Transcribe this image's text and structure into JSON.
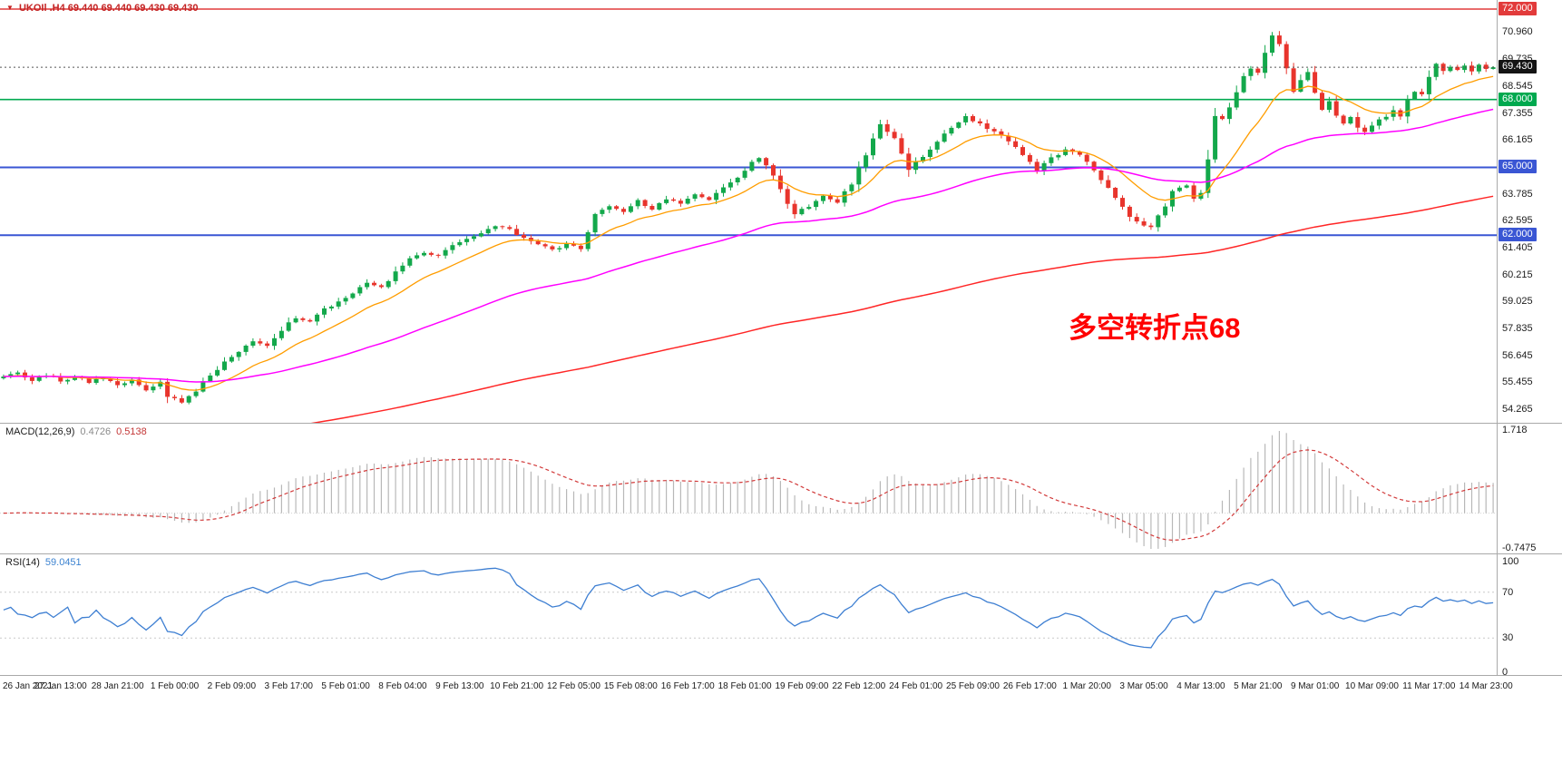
{
  "main_chart": {
    "title": {
      "symbol": "UKOIl .H4",
      "ohlc": "69.440 69.440 69.430 69.430"
    },
    "annotation": {
      "text": "多空转折点68",
      "color": "#ff0000"
    },
    "colors": {
      "up": "#13a84b",
      "down": "#e8342c"
    },
    "y_axis_ticks": [
      {
        "value": 70.96,
        "label": "70.960"
      },
      {
        "value": 69.735,
        "label": "69.735"
      },
      {
        "value": 68.545,
        "label": "68.545"
      },
      {
        "value": 67.355,
        "label": "67.355"
      },
      {
        "value": 66.165,
        "label": "66.165"
      },
      {
        "value": 63.785,
        "label": "63.785"
      },
      {
        "value": 62.595,
        "label": "62.595"
      },
      {
        "value": 61.405,
        "label": "61.405"
      },
      {
        "value": 60.215,
        "label": "60.215"
      },
      {
        "value": 59.025,
        "label": "59.025"
      },
      {
        "value": 57.835,
        "label": "57.835"
      },
      {
        "value": 56.645,
        "label": "56.645"
      },
      {
        "value": 55.455,
        "label": "55.455"
      },
      {
        "value": 54.265,
        "label": "54.265"
      }
    ],
    "levels": [
      {
        "value": 72.0,
        "label": "72.000",
        "color": "#e23b3b",
        "width": 1.6
      },
      {
        "value": 68.0,
        "label": "68.000",
        "color": "#00a94f",
        "width": 1.6
      },
      {
        "value": 65.0,
        "label": "65.000",
        "color": "#3a56d4",
        "width": 2
      },
      {
        "value": 62.0,
        "label": "62.000",
        "color": "#3a56d4",
        "width": 2
      }
    ],
    "current_price": {
      "value": 69.43,
      "label": "69.430",
      "badge_bg": "#141414",
      "line_color": "#555555"
    }
  },
  "macd_panel": {
    "name": "MACD(12,26,9)",
    "value1": "0.4726",
    "value2": "0.5138",
    "axis": [
      {
        "value": 1.718,
        "label": "1.718"
      },
      {
        "value": -0.7475,
        "label": "-0.7475"
      }
    ]
  },
  "rsi_panel": {
    "name": "RSI(14)",
    "value": "59.0451",
    "axis": [
      {
        "value": 100,
        "label": "100"
      },
      {
        "value": 70,
        "label": "70"
      },
      {
        "value": 30,
        "label": "30"
      },
      {
        "value": 0,
        "label": "0"
      }
    ]
  },
  "time_axis": {
    "labels": [
      "26 Jan 2021",
      "27 Jan 13:00",
      "28 Jan 21:00",
      "1 Feb 00:00",
      "2 Feb 09:00",
      "3 Feb 17:00",
      "5 Feb 01:00",
      "8 Feb 04:00",
      "9 Feb 13:00",
      "10 Feb 21:00",
      "12 Feb 05:00",
      "15 Feb 08:00",
      "16 Feb 17:00",
      "18 Feb 01:00",
      "19 Feb 09:00",
      "22 Feb 12:00",
      "24 Feb 01:00",
      "25 Feb 09:00",
      "26 Feb 17:00",
      "1 Mar 20:00",
      "3 Mar 05:00",
      "4 Mar 13:00",
      "5 Mar 21:00",
      "9 Mar 01:00",
      "10 Mar 09:00",
      "11 Mar 17:00",
      "14 Mar 23:00"
    ]
  },
  "chart_data": {
    "type": "candlestick",
    "symbol": "UKOIl",
    "timeframe": "H4",
    "n_candles": 210,
    "tick_every_candles": 8,
    "price_axis_range": [
      54.265,
      72.0
    ],
    "close_waypoints": [
      [
        0,
        55.75
      ],
      [
        2,
        55.95
      ],
      [
        4,
        55.6
      ],
      [
        6,
        55.85
      ],
      [
        8,
        55.55
      ],
      [
        10,
        55.75
      ],
      [
        12,
        55.45
      ],
      [
        14,
        55.7
      ],
      [
        16,
        55.35
      ],
      [
        18,
        55.6
      ],
      [
        20,
        55.2
      ],
      [
        22,
        55.45
      ],
      [
        23,
        54.9
      ],
      [
        25,
        54.55
      ],
      [
        27,
        55.15
      ],
      [
        29,
        55.85
      ],
      [
        31,
        56.35
      ],
      [
        33,
        56.85
      ],
      [
        35,
        57.35
      ],
      [
        37,
        57.15
      ],
      [
        39,
        57.8
      ],
      [
        41,
        58.35
      ],
      [
        43,
        58.15
      ],
      [
        45,
        58.7
      ],
      [
        47,
        59.1
      ],
      [
        49,
        59.45
      ],
      [
        51,
        59.9
      ],
      [
        53,
        59.7
      ],
      [
        55,
        60.35
      ],
      [
        57,
        60.95
      ],
      [
        59,
        61.25
      ],
      [
        61,
        61.05
      ],
      [
        63,
        61.5
      ],
      [
        65,
        61.85
      ],
      [
        67,
        62.15
      ],
      [
        69,
        62.45
      ],
      [
        71,
        62.25
      ],
      [
        73,
        61.85
      ],
      [
        75,
        61.55
      ],
      [
        77,
        61.35
      ],
      [
        79,
        61.6
      ],
      [
        81,
        61.45
      ],
      [
        82,
        62.1
      ],
      [
        83,
        63.0
      ],
      [
        85,
        63.35
      ],
      [
        87,
        63.05
      ],
      [
        89,
        63.5
      ],
      [
        91,
        63.2
      ],
      [
        93,
        63.65
      ],
      [
        95,
        63.35
      ],
      [
        97,
        63.75
      ],
      [
        99,
        63.5
      ],
      [
        101,
        64.1
      ],
      [
        103,
        64.5
      ],
      [
        105,
        65.2
      ],
      [
        106,
        65.45
      ],
      [
        108,
        64.6
      ],
      [
        110,
        63.4
      ],
      [
        111,
        62.95
      ],
      [
        113,
        63.3
      ],
      [
        115,
        63.7
      ],
      [
        117,
        63.5
      ],
      [
        119,
        64.3
      ],
      [
        121,
        65.6
      ],
      [
        123,
        66.9
      ],
      [
        125,
        66.3
      ],
      [
        127,
        64.95
      ],
      [
        129,
        65.45
      ],
      [
        131,
        66.2
      ],
      [
        133,
        66.8
      ],
      [
        135,
        67.25
      ],
      [
        137,
        66.9
      ],
      [
        139,
        66.6
      ],
      [
        141,
        66.15
      ],
      [
        143,
        65.6
      ],
      [
        145,
        64.9
      ],
      [
        147,
        65.45
      ],
      [
        149,
        65.75
      ],
      [
        151,
        65.5
      ],
      [
        153,
        64.9
      ],
      [
        155,
        64.1
      ],
      [
        157,
        63.2
      ],
      [
        159,
        62.55
      ],
      [
        161,
        62.4
      ],
      [
        163,
        63.3
      ],
      [
        164,
        63.9
      ],
      [
        166,
        64.25
      ],
      [
        167,
        63.6
      ],
      [
        168,
        63.85
      ],
      [
        169,
        65.3
      ],
      [
        170,
        67.3
      ],
      [
        171,
        67.1
      ],
      [
        172,
        67.6
      ],
      [
        173,
        68.3
      ],
      [
        174,
        69.0
      ],
      [
        175,
        69.4
      ],
      [
        176,
        69.2
      ],
      [
        177,
        70.1
      ],
      [
        178,
        70.9
      ],
      [
        179,
        70.4
      ],
      [
        180,
        69.4
      ],
      [
        181,
        68.4
      ],
      [
        182,
        68.9
      ],
      [
        183,
        69.2
      ],
      [
        184,
        68.3
      ],
      [
        185,
        67.6
      ],
      [
        186,
        67.9
      ],
      [
        187,
        67.3
      ],
      [
        188,
        66.9
      ],
      [
        189,
        67.2
      ],
      [
        190,
        66.7
      ],
      [
        191,
        66.5
      ],
      [
        193,
        67.1
      ],
      [
        195,
        67.5
      ],
      [
        196,
        67.3
      ],
      [
        197,
        68.0
      ],
      [
        198,
        68.4
      ],
      [
        199,
        68.2
      ],
      [
        200,
        69.0
      ],
      [
        201,
        69.6
      ],
      [
        202,
        69.3
      ],
      [
        203,
        69.5
      ],
      [
        204,
        69.25
      ],
      [
        205,
        69.45
      ],
      [
        206,
        69.3
      ],
      [
        207,
        69.55
      ],
      [
        208,
        69.35
      ],
      [
        209,
        69.43
      ]
    ],
    "moving_averages": [
      {
        "name": "ma-fast-line",
        "period": 13,
        "color": "#ff9d00",
        "width": 1.3
      },
      {
        "name": "ma-mid-line",
        "period": 55,
        "color": "#ff00ff",
        "width": 1.5
      },
      {
        "name": "ma-slow-line",
        "period": 190,
        "seed": 52.2,
        "color": "#ff2626",
        "width": 1.5
      }
    ],
    "indicators": {
      "macd": {
        "fast": 12,
        "slow": 26,
        "signal": 9,
        "range": [
          -0.7475,
          1.718
        ],
        "histogram_color": "#b8b8b8",
        "signal_color": "#d23a3a"
      },
      "rsi": {
        "period": 14,
        "range": [
          0,
          100
        ],
        "levels": [
          30,
          70
        ],
        "color": "#3e7fd2"
      }
    }
  }
}
